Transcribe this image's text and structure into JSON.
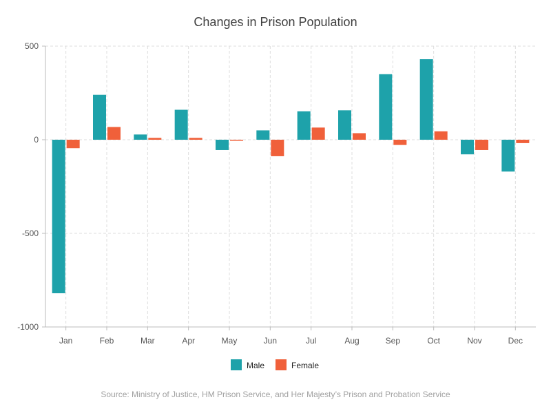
{
  "chart_data": {
    "type": "bar",
    "title": "Changes in Prison Population",
    "categories": [
      "Jan",
      "Feb",
      "Mar",
      "Apr",
      "May",
      "Jun",
      "Jul",
      "Aug",
      "Sep",
      "Oct",
      "Nov",
      "Dec"
    ],
    "series": [
      {
        "name": "Male",
        "color": "#1ea2aa",
        "values": [
          -820,
          240,
          28,
          160,
          -55,
          50,
          152,
          157,
          350,
          430,
          -78,
          -170
        ]
      },
      {
        "name": "Female",
        "color": "#f0603a",
        "values": [
          -45,
          68,
          10,
          10,
          -4,
          -88,
          65,
          35,
          -28,
          45,
          -55,
          -18
        ]
      }
    ],
    "ylim": [
      -1000,
      500
    ],
    "yticks": [
      -1000,
      -500,
      0,
      500
    ],
    "ytick_labels": [
      "-1000",
      "-500",
      "0",
      "500"
    ],
    "grid": true,
    "legend_position": "bottom",
    "xlabel": "",
    "ylabel": "",
    "source": "Source: Ministry of Justice, HM Prison Service, and Her Majesty’s Prison and Probation Service"
  }
}
